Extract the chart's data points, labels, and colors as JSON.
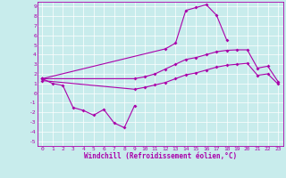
{
  "bg_color": "#c8ecec",
  "line_color": "#aa00aa",
  "xlabel": "Windchill (Refroidissement éolien,°C)",
  "ylim": [
    -5.5,
    9.5
  ],
  "xlim": [
    -0.5,
    23.5
  ],
  "yticks": [
    -5,
    -4,
    -3,
    -2,
    -1,
    0,
    1,
    2,
    3,
    4,
    5,
    6,
    7,
    8,
    9
  ],
  "xticks": [
    0,
    1,
    2,
    3,
    4,
    5,
    6,
    7,
    8,
    9,
    10,
    11,
    12,
    13,
    14,
    15,
    16,
    17,
    18,
    19,
    20,
    21,
    22,
    23
  ],
  "curveA_x": [
    0,
    1,
    2,
    3,
    4,
    5,
    6,
    7,
    8,
    9
  ],
  "curveA_y": [
    1.5,
    1.0,
    0.8,
    -1.5,
    -1.8,
    -2.3,
    -1.7,
    -3.1,
    -3.6,
    -1.3
  ],
  "curveB_x": [
    0,
    12,
    13,
    14,
    15,
    16,
    17,
    18
  ],
  "curveB_y": [
    1.5,
    4.6,
    5.2,
    8.6,
    8.9,
    9.2,
    8.1,
    5.5
  ],
  "curveC_x": [
    0,
    9,
    10,
    11,
    12,
    13,
    14,
    15,
    16,
    17,
    18,
    19,
    20,
    21,
    22,
    23
  ],
  "curveC_y": [
    1.5,
    1.5,
    1.7,
    2.0,
    2.5,
    3.0,
    3.5,
    3.7,
    4.0,
    4.3,
    4.45,
    4.5,
    4.5,
    2.6,
    2.8,
    1.2
  ],
  "curveD_x": [
    0,
    9,
    10,
    11,
    12,
    13,
    14,
    15,
    16,
    17,
    18,
    19,
    20,
    21,
    22,
    23
  ],
  "curveD_y": [
    1.3,
    0.4,
    0.6,
    0.85,
    1.1,
    1.5,
    1.9,
    2.1,
    2.4,
    2.7,
    2.9,
    3.0,
    3.1,
    1.85,
    2.0,
    0.95
  ],
  "tick_fontsize": 4.5,
  "xlabel_fontsize": 5.5,
  "lw": 0.8,
  "ms": 2.0
}
